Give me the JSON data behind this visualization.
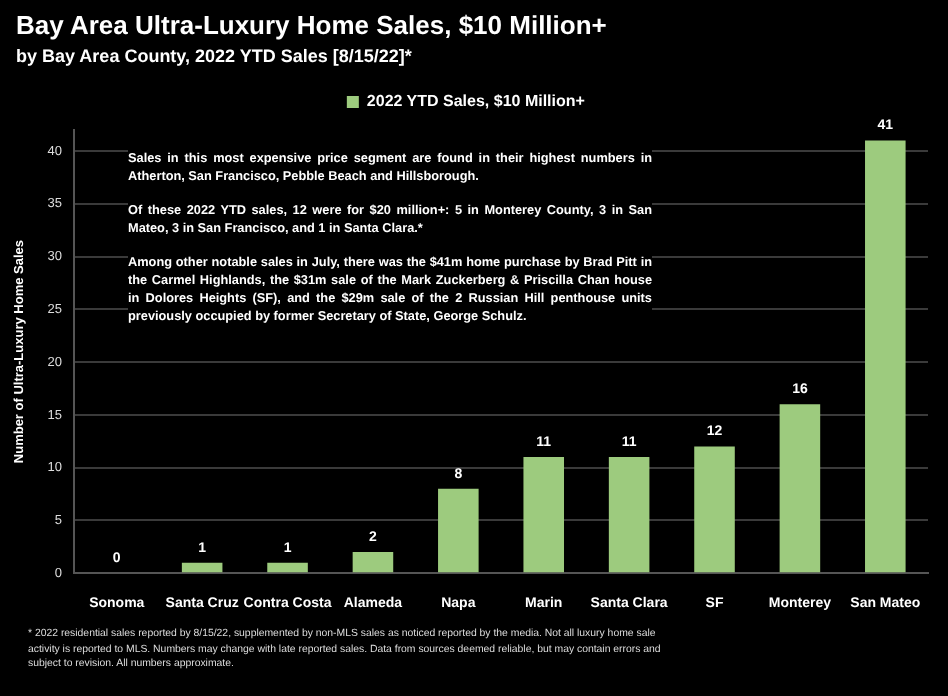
{
  "chart_data": {
    "type": "bar",
    "title": "Bay Area Ultra-Luxury Home Sales, $10 Million+",
    "subtitle": "by Bay Area County, 2022 YTD Sales [8/15/22]*",
    "ylabel": "Number of Ultra-Luxury Home Sales",
    "categories": [
      "Sonoma",
      "Santa Cruz",
      "Contra Costa",
      "Alameda",
      "Napa",
      "Marin",
      "Santa Clara",
      "SF",
      "Monterey",
      "San Mateo"
    ],
    "series": [
      {
        "name": "2022 YTD Sales, $10 Million+",
        "color": "#9dcb7e",
        "values": [
          0,
          1,
          1,
          2,
          8,
          11,
          11,
          12,
          16,
          41
        ]
      }
    ],
    "ylim": [
      0,
      42
    ],
    "yticks": [
      0,
      5,
      10,
      15,
      20,
      25,
      30,
      35,
      40
    ],
    "grid": "y",
    "legend": "top",
    "data_labels": true,
    "annotations": [
      "Sales in this most expensive price segment are found in their highest numbers in Atherton, San Francisco, Pebble Beach and Hillsborough.",
      "Of these 2022 YTD sales, 12 were for $20 million+: 5 in Monterey County, 3 in San Mateo, 3 in San Francisco, and 1 in Santa Clara.*",
      "Among other notable sales in July, there was the $41m home purchase by Brad Pitt in the Carmel Highlands, the $31m sale of the Mark Zuckerberg & Priscilla Chan house in Dolores Heights (SF), and the $29m sale of the 2 Russian Hill penthouse units previously occupied by former Secretary of State, George Schulz.",
      "* 2022 residential sales reported by 8/15/22, supplemented by non-MLS sales as noticed reported by the media. Not all luxury home sale activity is reported to MLS. Numbers may change with late reported sales. Data from sources deemed reliable, but may contain errors and subject to revision. All numbers approximate."
    ]
  }
}
